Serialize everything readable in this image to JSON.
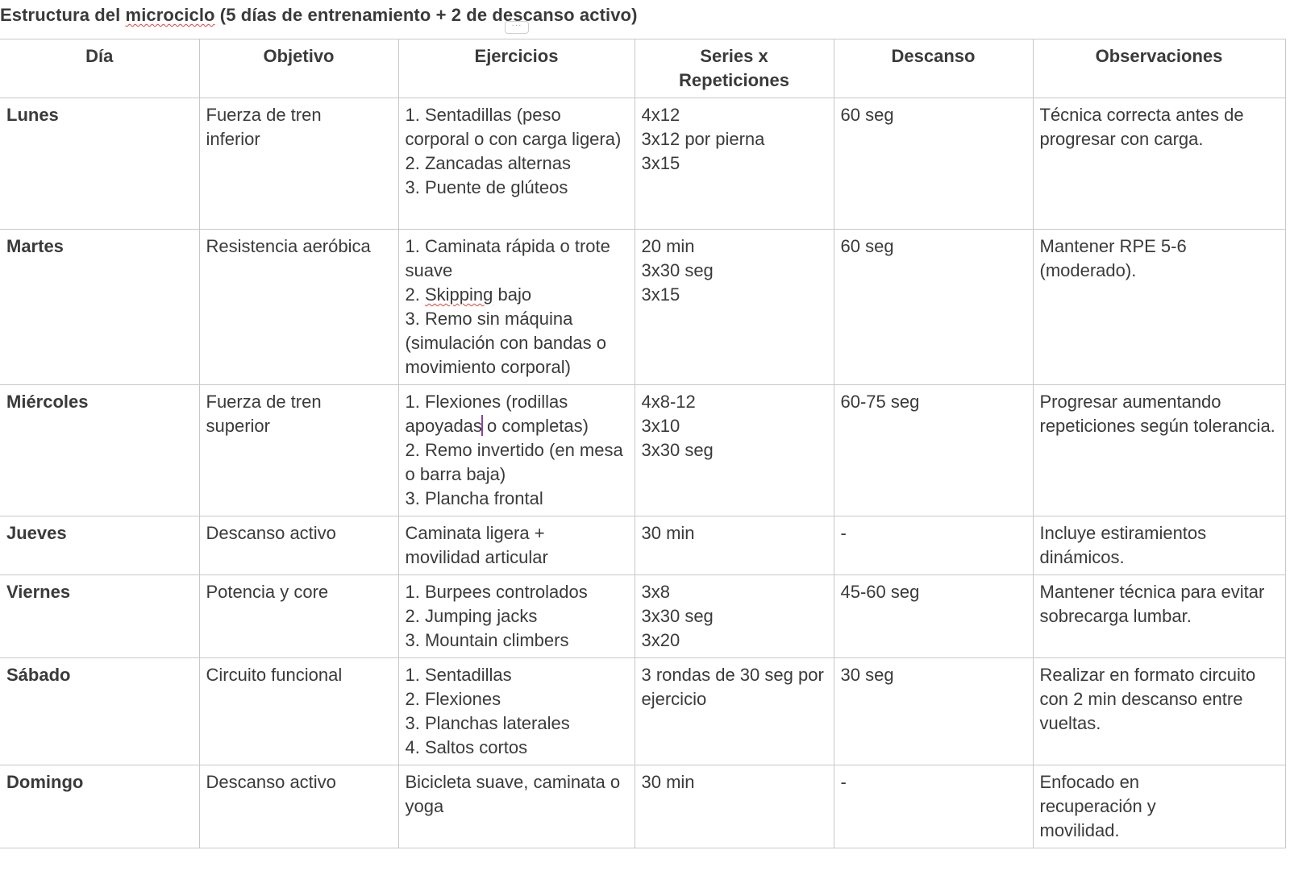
{
  "document": {
    "title_pre": "Estructura del ",
    "title_misspelled": "microciclo",
    "title_post": " (5 días de entrenamiento + 2 de descanso activo)",
    "more_handle": "···"
  },
  "table": {
    "headers": [
      "Día",
      "Objetivo",
      "Ejercicios",
      "Series x\nRepeticiones",
      "Descanso",
      "Observaciones"
    ],
    "rows": [
      {
        "day": "Lunes",
        "objective": "Fuerza de tren\ninferior",
        "exercises": "1. Sentadillas (peso corporal o con carga ligera)\n2. Zancadas alternas\n3. Puente de glúteos",
        "sets": "4x12\n3x12 por pierna\n3x15",
        "rest": "60 seg",
        "notes": "Técnica correcta antes de progresar con carga."
      },
      {
        "day": "Martes",
        "objective": "Resistencia aeróbica",
        "exercises_1": "1. Caminata rápida o trote suave\n2. ",
        "exercises_misspelled": "Skipping",
        "exercises_2": " bajo\n3. Remo sin máquina (simulación con bandas o movimiento corporal)",
        "sets": "20 min\n3x30 seg\n3x15",
        "rest": "60 seg",
        "notes": "Mantener RPE 5-6\n(moderado)."
      },
      {
        "day": "Miércoles",
        "objective": "Fuerza de tren\nsuperior",
        "exercises_1": "1. Flexiones (rodillas apoyadas",
        "exercises_2": " o completas)\n2. Remo invertido (en mesa o barra baja)\n3. Plancha frontal",
        "sets": "4x8-12\n3x10\n3x30 seg",
        "rest": "60-75 seg",
        "notes": "Progresar aumentando repeticiones según tolerancia."
      },
      {
        "day": "Jueves",
        "objective": "Descanso activo",
        "exercises": "Caminata ligera +\nmovilidad articular",
        "sets": "30 min",
        "rest": "-",
        "notes": "Incluye estiramientos dinámicos."
      },
      {
        "day": "Viernes",
        "objective": "Potencia y core",
        "exercises": "1. Burpees controlados\n2. Jumping jacks\n3. Mountain climbers",
        "sets": "3x8\n3x30 seg\n3x20",
        "rest": "45-60 seg",
        "notes": "Mantener técnica para evitar sobrecarga lumbar."
      },
      {
        "day": "Sábado",
        "objective": "Circuito funcional",
        "exercises": "1. Sentadillas\n2. Flexiones\n3. Planchas laterales\n4. Saltos cortos",
        "sets": "3 rondas de 30 seg por ejercicio",
        "rest": "30 seg",
        "notes": "Realizar en formato circuito con 2 min descanso entre vueltas."
      },
      {
        "day": "Domingo",
        "objective": "Descanso activo",
        "exercises": "Bicicleta suave, caminata o yoga",
        "sets": "30 min",
        "rest": "-",
        "notes": "Enfocado en\nrecuperación y\nmovilidad."
      }
    ]
  }
}
